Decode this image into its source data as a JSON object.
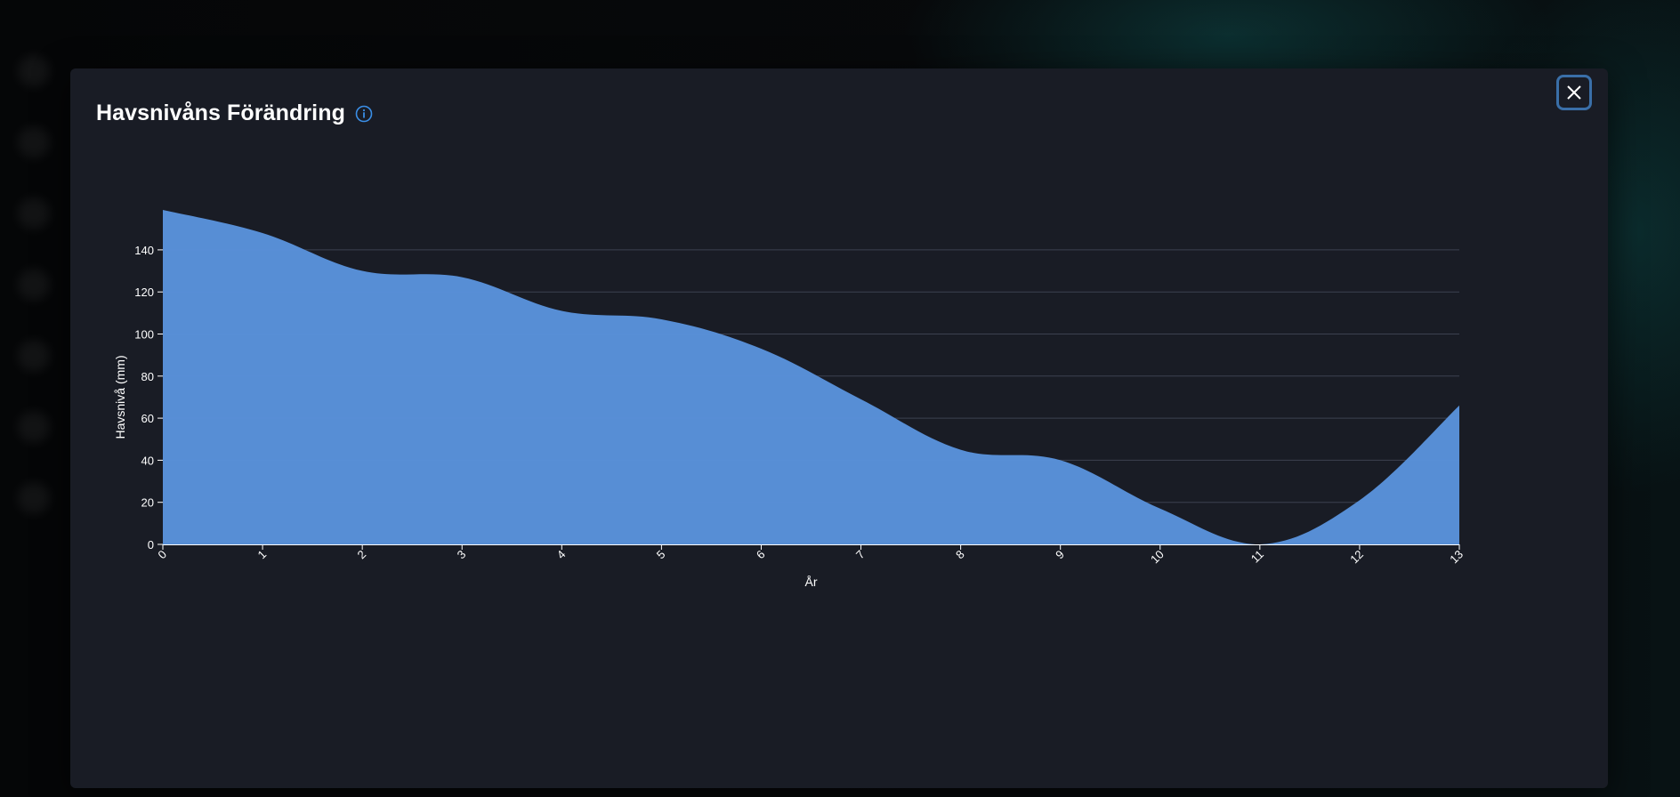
{
  "modal": {
    "title": "Havsnivåns Förändring",
    "info_icon": "info-circle-icon",
    "close_icon": "close-x-icon"
  },
  "colors": {
    "background": "#191c25",
    "area_fill": "#5a93dd",
    "grid": "#3c4150",
    "accent": "#3a8ee6",
    "close_border": "#3a6fa8"
  },
  "chart_data": {
    "type": "area",
    "x": [
      0,
      1,
      2,
      3,
      4,
      5,
      6,
      7,
      8,
      9,
      10,
      11,
      12,
      13
    ],
    "values": [
      159,
      148,
      130,
      127,
      111,
      107,
      93,
      69,
      45,
      40,
      17,
      0,
      21,
      66
    ],
    "xlabel": "År",
    "ylabel": "Havsnivå (mm)",
    "x_ticks": [
      "0",
      "1",
      "2",
      "3",
      "4",
      "5",
      "6",
      "7",
      "8",
      "9",
      "10",
      "11",
      "12",
      "13"
    ],
    "y_ticks": [
      "0",
      "20",
      "40",
      "60",
      "80",
      "100",
      "120",
      "140"
    ],
    "xlim": [
      0,
      13
    ],
    "ylim": [
      0,
      140
    ],
    "grid": "horizontal",
    "legend": "none"
  }
}
